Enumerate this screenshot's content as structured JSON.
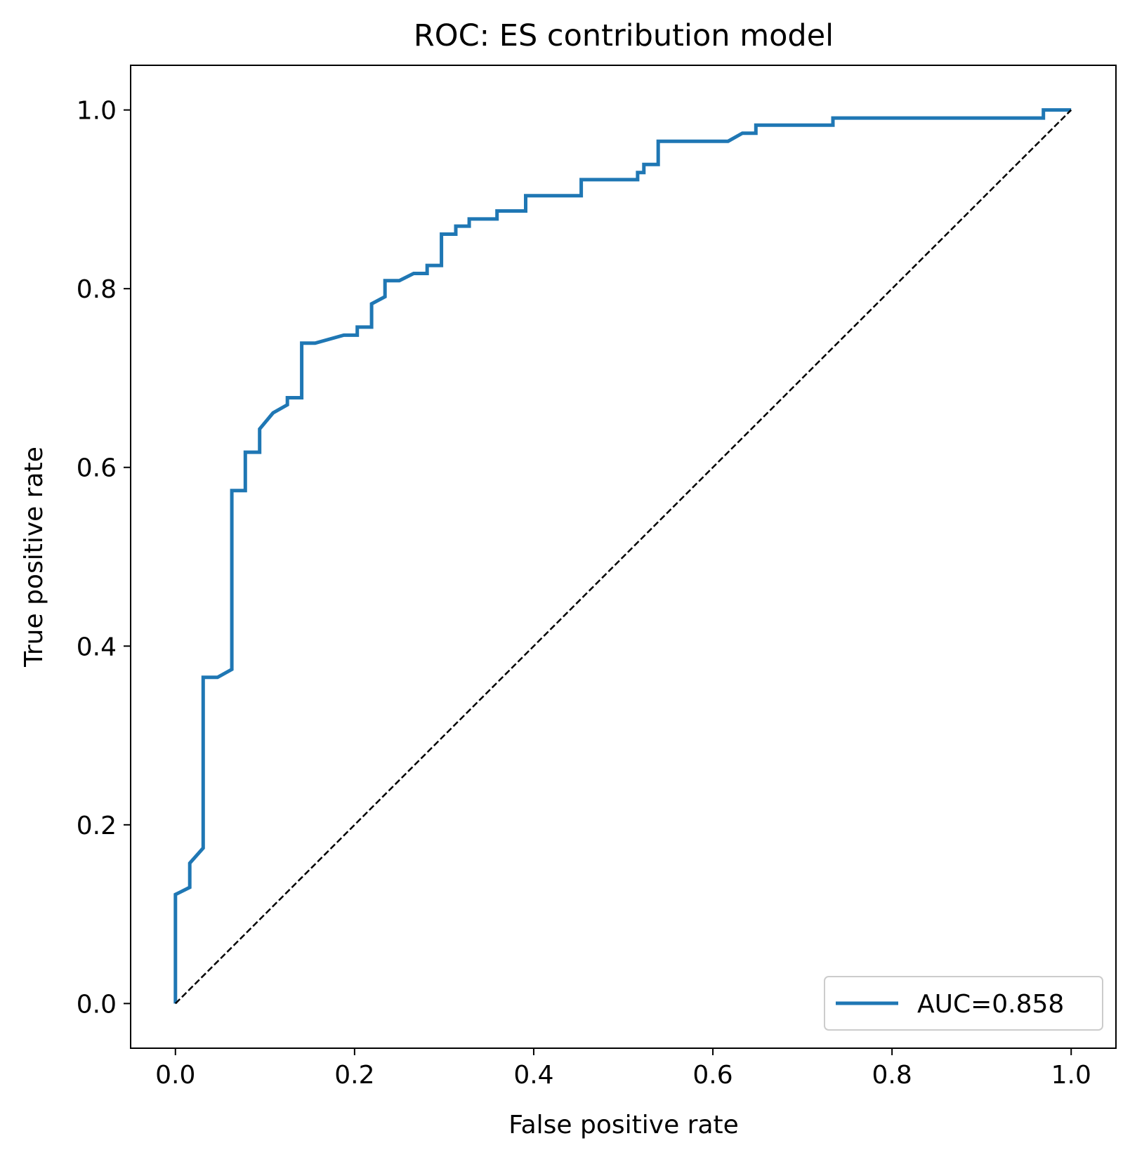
{
  "chart_data": {
    "type": "line",
    "title": "ROC: ES contribution model",
    "xlabel": "False positive rate",
    "ylabel": "True positive rate",
    "xlim": [
      -0.05,
      1.05
    ],
    "ylim": [
      -0.05,
      1.05
    ],
    "xticks": [
      0.0,
      0.2,
      0.4,
      0.6,
      0.8,
      1.0
    ],
    "yticks": [
      0.0,
      0.2,
      0.4,
      0.6,
      0.8,
      1.0
    ],
    "xtick_labels": [
      "0.0",
      "0.2",
      "0.4",
      "0.6",
      "0.8",
      "1.0"
    ],
    "ytick_labels": [
      "0.0",
      "0.2",
      "0.4",
      "0.6",
      "0.8",
      "1.0"
    ],
    "grid": false,
    "legend_position": "lower-right",
    "series": [
      {
        "name": "AUC=0.858",
        "color": "#1f77b4",
        "style": "solid",
        "x": [
          0.0,
          0.0,
          0.016,
          0.016,
          0.031,
          0.031,
          0.047,
          0.063,
          0.063,
          0.078,
          0.078,
          0.094,
          0.094,
          0.109,
          0.125,
          0.125,
          0.141,
          0.141,
          0.156,
          0.188,
          0.203,
          0.203,
          0.219,
          0.219,
          0.234,
          0.234,
          0.25,
          0.266,
          0.281,
          0.281,
          0.297,
          0.297,
          0.313,
          0.313,
          0.328,
          0.328,
          0.359,
          0.359,
          0.391,
          0.391,
          0.453,
          0.453,
          0.516,
          0.516,
          0.523,
          0.523,
          0.539,
          0.539,
          0.617,
          0.633,
          0.648,
          0.648,
          0.734,
          0.734,
          0.969,
          0.969,
          1.0
        ],
        "y": [
          0.0,
          0.122,
          0.13,
          0.157,
          0.174,
          0.365,
          0.365,
          0.374,
          0.574,
          0.574,
          0.617,
          0.617,
          0.643,
          0.661,
          0.67,
          0.678,
          0.678,
          0.739,
          0.739,
          0.748,
          0.748,
          0.757,
          0.757,
          0.783,
          0.791,
          0.809,
          0.809,
          0.817,
          0.817,
          0.826,
          0.826,
          0.861,
          0.861,
          0.87,
          0.87,
          0.878,
          0.878,
          0.887,
          0.887,
          0.904,
          0.904,
          0.922,
          0.922,
          0.93,
          0.93,
          0.939,
          0.939,
          0.965,
          0.965,
          0.974,
          0.974,
          0.983,
          0.983,
          0.991,
          0.991,
          1.0,
          1.0
        ]
      },
      {
        "name": "",
        "color": "#000000",
        "style": "dashed",
        "x": [
          0.0,
          1.0
        ],
        "y": [
          0.0,
          1.0
        ]
      }
    ]
  }
}
